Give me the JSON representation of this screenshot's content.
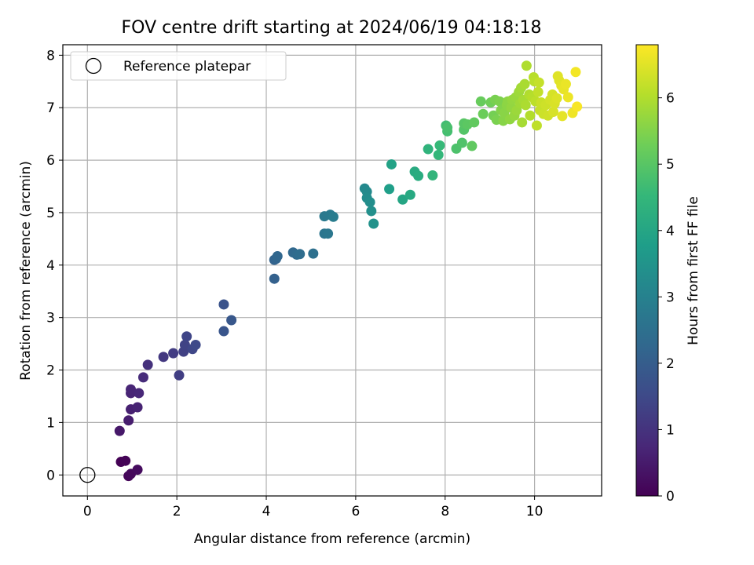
{
  "chart_data": {
    "type": "scatter",
    "title": "FOV centre drift starting at 2024/06/19 04:18:18",
    "xlabel": "Angular distance from reference (arcmin)",
    "ylabel": "Rotation from reference (arcmin)",
    "xlim": [
      -0.55,
      11.5
    ],
    "ylim": [
      -0.4,
      8.2
    ],
    "xticks": [
      0,
      2,
      4,
      6,
      8,
      10
    ],
    "yticks": [
      0,
      1,
      2,
      3,
      4,
      5,
      6,
      7,
      8
    ],
    "grid": true,
    "legend": {
      "placement": "top-left",
      "entries": [
        "Reference platepar"
      ]
    },
    "reference_point": {
      "x": 0,
      "y": 0,
      "name": "Reference platepar"
    },
    "colorbar": {
      "label": "Hours from first FF file",
      "range": [
        0,
        6.8
      ],
      "ticks": [
        0,
        1,
        2,
        3,
        4,
        5,
        6
      ],
      "colormap": "viridis"
    },
    "series": [
      {
        "points": [
          {
            "x": 0.75,
            "y": 0.25,
            "t": 0.02
          },
          {
            "x": 0.85,
            "y": 0.27,
            "t": 0.05
          },
          {
            "x": 0.92,
            "y": -0.02,
            "t": 0.1
          },
          {
            "x": 0.97,
            "y": 0.02,
            "t": 0.15
          },
          {
            "x": 1.12,
            "y": 0.1,
            "t": 0.2
          },
          {
            "x": 0.72,
            "y": 0.84,
            "t": 0.45
          },
          {
            "x": 0.92,
            "y": 1.04,
            "t": 0.55
          },
          {
            "x": 0.97,
            "y": 1.25,
            "t": 0.6
          },
          {
            "x": 1.12,
            "y": 1.29,
            "t": 0.65
          },
          {
            "x": 0.97,
            "y": 1.56,
            "t": 0.7
          },
          {
            "x": 0.97,
            "y": 1.63,
            "t": 0.72
          },
          {
            "x": 1.15,
            "y": 1.56,
            "t": 0.75
          },
          {
            "x": 1.25,
            "y": 1.86,
            "t": 0.85
          },
          {
            "x": 1.35,
            "y": 2.1,
            "t": 0.95
          },
          {
            "x": 1.7,
            "y": 2.25,
            "t": 1.1
          },
          {
            "x": 1.92,
            "y": 2.32,
            "t": 1.2
          },
          {
            "x": 2.05,
            "y": 1.9,
            "t": 1.25
          },
          {
            "x": 2.15,
            "y": 2.35,
            "t": 1.3
          },
          {
            "x": 2.18,
            "y": 2.48,
            "t": 1.35
          },
          {
            "x": 2.22,
            "y": 2.64,
            "t": 1.4
          },
          {
            "x": 2.35,
            "y": 2.4,
            "t": 1.45
          },
          {
            "x": 2.42,
            "y": 2.48,
            "t": 1.5
          },
          {
            "x": 3.05,
            "y": 3.25,
            "t": 1.75
          },
          {
            "x": 3.05,
            "y": 2.74,
            "t": 1.8
          },
          {
            "x": 3.22,
            "y": 2.95,
            "t": 1.85
          },
          {
            "x": 4.18,
            "y": 3.74,
            "t": 2.1
          },
          {
            "x": 4.18,
            "y": 4.1,
            "t": 2.15
          },
          {
            "x": 4.22,
            "y": 4.12,
            "t": 2.2
          },
          {
            "x": 4.25,
            "y": 4.17,
            "t": 2.25
          },
          {
            "x": 4.6,
            "y": 4.24,
            "t": 2.3
          },
          {
            "x": 4.68,
            "y": 4.2,
            "t": 2.35
          },
          {
            "x": 4.75,
            "y": 4.21,
            "t": 2.4
          },
          {
            "x": 5.05,
            "y": 4.22,
            "t": 2.5
          },
          {
            "x": 5.3,
            "y": 4.6,
            "t": 2.65
          },
          {
            "x": 5.38,
            "y": 4.6,
            "t": 2.7
          },
          {
            "x": 5.3,
            "y": 4.93,
            "t": 2.75
          },
          {
            "x": 5.43,
            "y": 4.96,
            "t": 2.8
          },
          {
            "x": 5.5,
            "y": 4.92,
            "t": 2.85
          },
          {
            "x": 6.2,
            "y": 5.46,
            "t": 3.2
          },
          {
            "x": 6.25,
            "y": 5.4,
            "t": 3.25
          },
          {
            "x": 6.25,
            "y": 5.28,
            "t": 3.3
          },
          {
            "x": 6.32,
            "y": 5.2,
            "t": 3.35
          },
          {
            "x": 6.35,
            "y": 5.03,
            "t": 3.4
          },
          {
            "x": 6.4,
            "y": 4.79,
            "t": 3.45
          },
          {
            "x": 6.75,
            "y": 5.45,
            "t": 3.8
          },
          {
            "x": 6.8,
            "y": 5.92,
            "t": 3.9
          },
          {
            "x": 7.05,
            "y": 5.25,
            "t": 4.0
          },
          {
            "x": 7.22,
            "y": 5.34,
            "t": 4.1
          },
          {
            "x": 7.32,
            "y": 5.78,
            "t": 4.15
          },
          {
            "x": 7.4,
            "y": 5.7,
            "t": 4.2
          },
          {
            "x": 7.62,
            "y": 6.21,
            "t": 4.4
          },
          {
            "x": 7.72,
            "y": 5.71,
            "t": 4.45
          },
          {
            "x": 7.85,
            "y": 6.1,
            "t": 4.5
          },
          {
            "x": 7.88,
            "y": 6.28,
            "t": 4.55
          },
          {
            "x": 8.02,
            "y": 6.66,
            "t": 4.7
          },
          {
            "x": 8.05,
            "y": 6.55,
            "t": 4.75
          },
          {
            "x": 8.05,
            "y": 6.62,
            "t": 4.8
          },
          {
            "x": 8.25,
            "y": 6.22,
            "t": 4.85
          },
          {
            "x": 8.38,
            "y": 6.33,
            "t": 4.9
          },
          {
            "x": 8.42,
            "y": 6.58,
            "t": 4.95
          },
          {
            "x": 8.42,
            "y": 6.7,
            "t": 5.0
          },
          {
            "x": 8.5,
            "y": 6.68,
            "t": 5.05
          },
          {
            "x": 8.6,
            "y": 6.27,
            "t": 5.1
          },
          {
            "x": 8.65,
            "y": 6.72,
            "t": 5.12
          },
          {
            "x": 8.8,
            "y": 7.12,
            "t": 5.2
          },
          {
            "x": 8.85,
            "y": 6.88,
            "t": 5.25
          },
          {
            "x": 9.02,
            "y": 7.1,
            "t": 5.3
          },
          {
            "x": 9.08,
            "y": 6.85,
            "t": 5.35
          },
          {
            "x": 9.12,
            "y": 7.15,
            "t": 5.4
          },
          {
            "x": 9.15,
            "y": 6.77,
            "t": 5.42
          },
          {
            "x": 9.22,
            "y": 7.12,
            "t": 5.45
          },
          {
            "x": 9.25,
            "y": 6.95,
            "t": 5.5
          },
          {
            "x": 9.3,
            "y": 6.75,
            "t": 5.55
          },
          {
            "x": 9.32,
            "y": 6.9,
            "t": 5.58
          },
          {
            "x": 9.38,
            "y": 7.05,
            "t": 5.6
          },
          {
            "x": 9.4,
            "y": 7.12,
            "t": 5.62
          },
          {
            "x": 9.45,
            "y": 6.78,
            "t": 5.65
          },
          {
            "x": 9.48,
            "y": 7.0,
            "t": 5.68
          },
          {
            "x": 9.5,
            "y": 7.15,
            "t": 5.7
          },
          {
            "x": 9.55,
            "y": 6.85,
            "t": 5.72
          },
          {
            "x": 9.58,
            "y": 7.2,
            "t": 5.75
          },
          {
            "x": 9.6,
            "y": 6.95,
            "t": 5.78
          },
          {
            "x": 9.65,
            "y": 7.3,
            "t": 5.8
          },
          {
            "x": 9.68,
            "y": 7.08,
            "t": 5.82
          },
          {
            "x": 9.7,
            "y": 7.38,
            "t": 5.85
          },
          {
            "x": 9.72,
            "y": 6.72,
            "t": 5.88
          },
          {
            "x": 9.75,
            "y": 7.15,
            "t": 5.9
          },
          {
            "x": 9.78,
            "y": 7.45,
            "t": 5.92
          },
          {
            "x": 9.8,
            "y": 7.05,
            "t": 5.95
          },
          {
            "x": 9.82,
            "y": 7.8,
            "t": 5.98
          },
          {
            "x": 9.88,
            "y": 7.25,
            "t": 6.0
          },
          {
            "x": 9.9,
            "y": 6.85,
            "t": 6.02
          },
          {
            "x": 9.95,
            "y": 7.2,
            "t": 6.05
          },
          {
            "x": 9.98,
            "y": 7.58,
            "t": 6.08
          },
          {
            "x": 10.0,
            "y": 7.5,
            "t": 6.1
          },
          {
            "x": 10.02,
            "y": 7.12,
            "t": 6.12
          },
          {
            "x": 10.05,
            "y": 6.66,
            "t": 6.15
          },
          {
            "x": 10.08,
            "y": 7.3,
            "t": 6.18
          },
          {
            "x": 10.1,
            "y": 7.48,
            "t": 6.2
          },
          {
            "x": 10.12,
            "y": 6.95,
            "t": 6.22
          },
          {
            "x": 10.15,
            "y": 7.1,
            "t": 6.25
          },
          {
            "x": 10.2,
            "y": 6.88,
            "t": 6.28
          },
          {
            "x": 10.25,
            "y": 7.05,
            "t": 6.3
          },
          {
            "x": 10.3,
            "y": 6.85,
            "t": 6.32
          },
          {
            "x": 10.35,
            "y": 7.15,
            "t": 6.35
          },
          {
            "x": 10.4,
            "y": 7.25,
            "t": 6.38
          },
          {
            "x": 10.42,
            "y": 6.92,
            "t": 6.4
          },
          {
            "x": 10.45,
            "y": 7.08,
            "t": 6.42
          },
          {
            "x": 10.5,
            "y": 7.18,
            "t": 6.45
          },
          {
            "x": 10.52,
            "y": 7.6,
            "t": 6.48
          },
          {
            "x": 10.55,
            "y": 7.52,
            "t": 6.5
          },
          {
            "x": 10.6,
            "y": 7.42,
            "t": 6.52
          },
          {
            "x": 10.62,
            "y": 6.84,
            "t": 6.55
          },
          {
            "x": 10.65,
            "y": 7.35,
            "t": 6.58
          },
          {
            "x": 10.7,
            "y": 7.45,
            "t": 6.6
          },
          {
            "x": 10.75,
            "y": 7.2,
            "t": 6.62
          },
          {
            "x": 10.85,
            "y": 6.9,
            "t": 6.65
          },
          {
            "x": 10.92,
            "y": 7.68,
            "t": 6.7
          },
          {
            "x": 10.95,
            "y": 7.02,
            "t": 6.75
          }
        ]
      }
    ]
  }
}
